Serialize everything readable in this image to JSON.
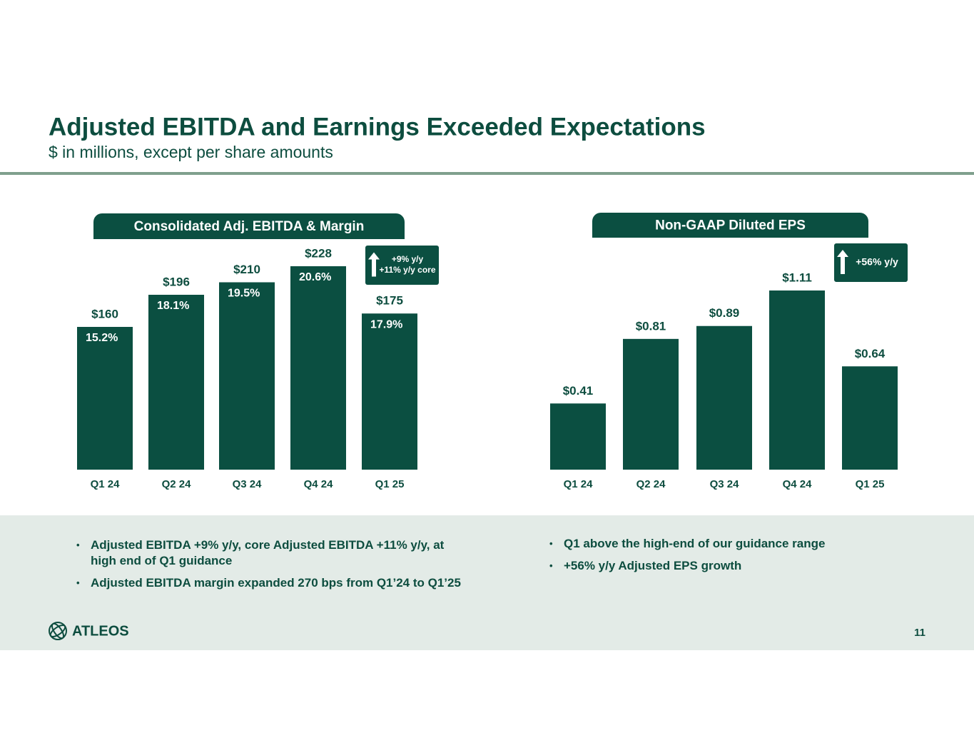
{
  "title": "Adjusted EBITDA and Earnings Exceeded Expectations",
  "subtitle": "$ in millions, except per share amounts",
  "chart_data": [
    {
      "type": "bar",
      "title": "Consolidated Adj. EBITDA & Margin",
      "categories": [
        "Q1 24",
        "Q2 24",
        "Q3 24",
        "Q4 24",
        "Q1 25"
      ],
      "values": [
        160,
        196,
        210,
        228,
        175
      ],
      "value_labels": [
        "$160",
        "$196",
        "$210",
        "$228",
        "$175"
      ],
      "margins": [
        15.2,
        18.1,
        19.5,
        20.6,
        17.9
      ],
      "margin_labels": [
        "15.2%",
        "18.1%",
        "19.5%",
        "20.6%",
        "17.9%"
      ],
      "annotation": [
        "+9% y/y",
        "+11% y/y core"
      ],
      "color": "#0b4f41"
    },
    {
      "type": "bar",
      "title": "Non-GAAP Diluted EPS",
      "categories": [
        "Q1 24",
        "Q2 24",
        "Q3 24",
        "Q4 24",
        "Q1 25"
      ],
      "values": [
        0.41,
        0.81,
        0.89,
        1.11,
        0.64
      ],
      "value_labels": [
        "$0.41",
        "$0.81",
        "$0.89",
        "$1.11",
        "$0.64"
      ],
      "annotation": [
        "+56% y/y"
      ],
      "color": "#0b4f41"
    }
  ],
  "bullets_left": [
    "Adjusted EBITDA +9% y/y, core Adjusted EBITDA +11% y/y, at high end of Q1 guidance",
    "Adjusted EBITDA margin expanded 270 bps from Q1’24 to Q1’25"
  ],
  "bullets_right": [
    "Q1 above the high-end of our guidance range",
    "+56% y/y Adjusted EPS growth"
  ],
  "logo": "ATLEOS",
  "page_number": "11"
}
